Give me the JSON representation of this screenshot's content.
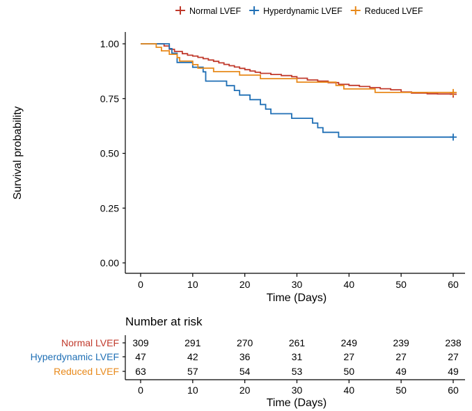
{
  "legend": {
    "items": [
      {
        "label": "Normal LVEF",
        "color": "#C0392B"
      },
      {
        "label": "Hyperdynamic LVEF",
        "color": "#1F6FB5"
      },
      {
        "label": "Reduced LVEF",
        "color": "#E8891A"
      }
    ]
  },
  "chart_data": {
    "type": "line",
    "step": true,
    "xlabel": "Time (Days)",
    "ylabel": "Survival probability",
    "xlim": [
      0,
      60
    ],
    "ylim": [
      0,
      1
    ],
    "x_ticks": [
      "0",
      "10",
      "20",
      "30",
      "40",
      "50",
      "60"
    ],
    "y_ticks": [
      "0.00",
      "0.25",
      "0.50",
      "0.75",
      "1.00"
    ],
    "legend_position": "top",
    "grid": false,
    "series": [
      {
        "name": "Normal LVEF",
        "color": "#C0392B",
        "points": [
          [
            0,
            1.0
          ],
          [
            4,
            1.0
          ],
          [
            4.5,
            0.99
          ],
          [
            5.5,
            0.975
          ],
          [
            6.5,
            0.965
          ],
          [
            8,
            0.955
          ],
          [
            9,
            0.948
          ],
          [
            10,
            0.944
          ],
          [
            11,
            0.938
          ],
          [
            12,
            0.932
          ],
          [
            13,
            0.926
          ],
          [
            14,
            0.92
          ],
          [
            15,
            0.913
          ],
          [
            16,
            0.906
          ],
          [
            17,
            0.9
          ],
          [
            18,
            0.894
          ],
          [
            19,
            0.888
          ],
          [
            20,
            0.882
          ],
          [
            21,
            0.876
          ],
          [
            22,
            0.87
          ],
          [
            23,
            0.865
          ],
          [
            25,
            0.86
          ],
          [
            27,
            0.855
          ],
          [
            29,
            0.85
          ],
          [
            30,
            0.843
          ],
          [
            32,
            0.835
          ],
          [
            34,
            0.83
          ],
          [
            36,
            0.823
          ],
          [
            38,
            0.815
          ],
          [
            40,
            0.81
          ],
          [
            42,
            0.805
          ],
          [
            44,
            0.8
          ],
          [
            46,
            0.795
          ],
          [
            48,
            0.79
          ],
          [
            50,
            0.78
          ],
          [
            52,
            0.775
          ],
          [
            55,
            0.772
          ],
          [
            57,
            0.771
          ],
          [
            60,
            0.77
          ]
        ],
        "censor_end": true
      },
      {
        "name": "Hyperdynamic LVEF",
        "color": "#1F6FB5",
        "points": [
          [
            0,
            1.0
          ],
          [
            5,
            1.0
          ],
          [
            5.5,
            0.978
          ],
          [
            6,
            0.957
          ],
          [
            7,
            0.915
          ],
          [
            9,
            0.915
          ],
          [
            10,
            0.893
          ],
          [
            12,
            0.872
          ],
          [
            12.5,
            0.83
          ],
          [
            16,
            0.83
          ],
          [
            16.5,
            0.809
          ],
          [
            18,
            0.787
          ],
          [
            19,
            0.766
          ],
          [
            21,
            0.745
          ],
          [
            23,
            0.723
          ],
          [
            24,
            0.702
          ],
          [
            25,
            0.681
          ],
          [
            29,
            0.66
          ],
          [
            33,
            0.638
          ],
          [
            34,
            0.617
          ],
          [
            35,
            0.596
          ],
          [
            38,
            0.574
          ],
          [
            60,
            0.574
          ]
        ],
        "censor_end": true
      },
      {
        "name": "Reduced LVEF",
        "color": "#E8891A",
        "points": [
          [
            0,
            1.0
          ],
          [
            2.5,
            1.0
          ],
          [
            3,
            0.984
          ],
          [
            4,
            0.968
          ],
          [
            5.5,
            0.952
          ],
          [
            7,
            0.937
          ],
          [
            7.5,
            0.921
          ],
          [
            10,
            0.905
          ],
          [
            11,
            0.889
          ],
          [
            13,
            0.889
          ],
          [
            14,
            0.873
          ],
          [
            18,
            0.873
          ],
          [
            19,
            0.857
          ],
          [
            22,
            0.857
          ],
          [
            23,
            0.841
          ],
          [
            30,
            0.825
          ],
          [
            37,
            0.825
          ],
          [
            37.5,
            0.81
          ],
          [
            39,
            0.794
          ],
          [
            44,
            0.794
          ],
          [
            45,
            0.778
          ],
          [
            60,
            0.778
          ]
        ],
        "censor_end": true
      }
    ]
  },
  "risk_table": {
    "title": "Number at risk",
    "xlabel": "Time (Days)",
    "x_ticks": [
      "0",
      "10",
      "20",
      "30",
      "40",
      "50",
      "60"
    ],
    "rows": [
      {
        "label": "Normal LVEF",
        "color": "#C0392B",
        "values": [
          "309",
          "291",
          "270",
          "261",
          "249",
          "239",
          "238"
        ]
      },
      {
        "label": "Hyperdynamic LVEF",
        "color": "#1F6FB5",
        "values": [
          "47",
          "42",
          "36",
          "31",
          "27",
          "27",
          "27"
        ]
      },
      {
        "label": "Reduced LVEF",
        "color": "#E8891A",
        "values": [
          "63",
          "57",
          "54",
          "53",
          "50",
          "49",
          "49"
        ]
      }
    ]
  }
}
